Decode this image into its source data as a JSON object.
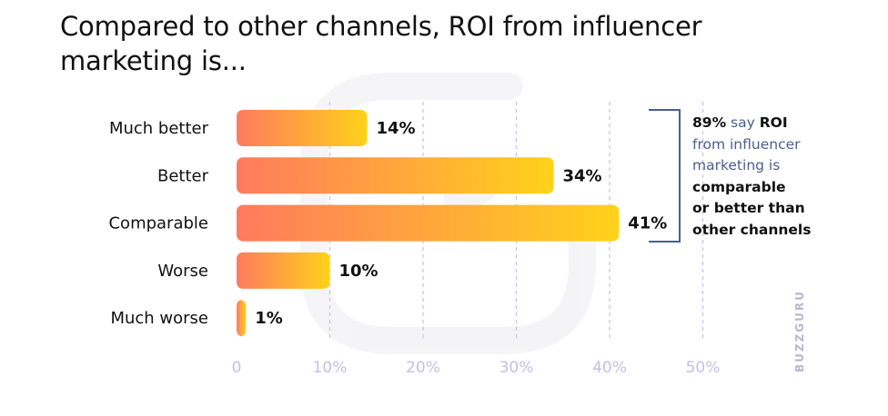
{
  "title_line1": "Compared to other channels, ROI from influencer",
  "title_line2": "marketing is...",
  "chart_data": {
    "type": "bar",
    "orientation": "horizontal",
    "title": "Compared to other channels, ROI from influencer marketing is...",
    "categories": [
      "Much better",
      "Better",
      "Comparable",
      "Worse",
      "Much worse"
    ],
    "values": [
      14,
      34,
      41,
      10,
      1
    ],
    "value_labels": [
      "14%",
      "34%",
      "41%",
      "10%",
      "1%"
    ],
    "xlim": [
      0,
      50
    ],
    "x_ticks": [
      0,
      10,
      20,
      30,
      40,
      50
    ],
    "x_tick_labels": [
      "0",
      "10%",
      "20%",
      "30%",
      "40%",
      "50%"
    ],
    "grid": "vertical dashed",
    "bar_gradient": [
      "#ff7a5e",
      "#ffd21a"
    ]
  },
  "annotation": {
    "line1_bold": "89%",
    "line1_rest": " say ",
    "line1_bold2": "ROI",
    "line2": "from influencer",
    "line3": "marketing is",
    "line4": "comparable",
    "line5": "or better than",
    "line6": "other channels"
  },
  "watermark": "BUZZGURU"
}
